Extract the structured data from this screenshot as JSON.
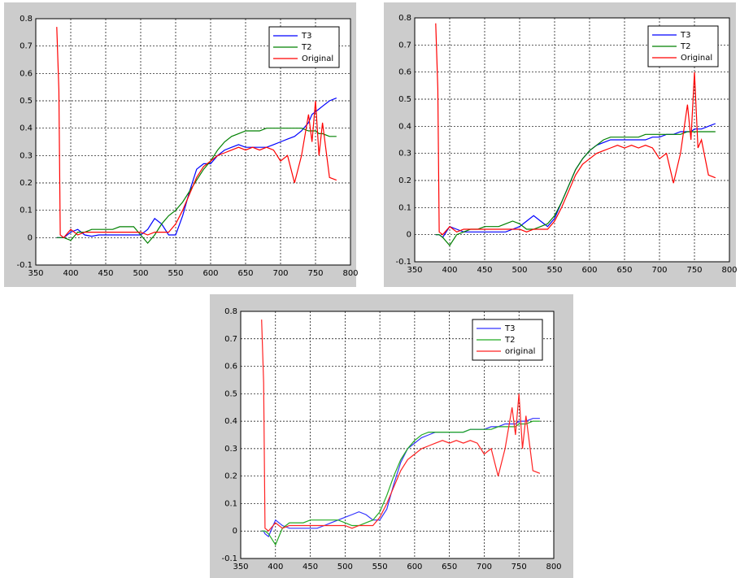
{
  "chart_data": [
    {
      "type": "line",
      "legend": "upper right",
      "grid": true,
      "xlim": [
        350,
        800
      ],
      "xticks": [
        350,
        400,
        450,
        500,
        550,
        600,
        650,
        700,
        750,
        800
      ],
      "ylim": [
        -0.1,
        0.8
      ],
      "yticks": [
        -0.1,
        0,
        0.1,
        0.2,
        0.3,
        0.4,
        0.5,
        0.6,
        0.7,
        0.8
      ],
      "x": [
        380,
        383,
        385,
        390,
        400,
        410,
        420,
        430,
        440,
        450,
        460,
        470,
        480,
        490,
        500,
        510,
        520,
        530,
        540,
        550,
        560,
        570,
        580,
        590,
        600,
        610,
        620,
        630,
        640,
        650,
        660,
        670,
        680,
        690,
        700,
        710,
        720,
        730,
        740,
        745,
        750,
        755,
        760,
        770,
        780
      ],
      "series": [
        {
          "name": "T3",
          "color": "#0000ff",
          "values": [
            0,
            0,
            0,
            0,
            0.02,
            0.03,
            0.01,
            0.005,
            0.01,
            0.01,
            0.01,
            0.01,
            0.01,
            0.01,
            0.01,
            0.03,
            0.07,
            0.05,
            0.01,
            0.01,
            0.08,
            0.17,
            0.25,
            0.27,
            0.27,
            0.3,
            0.32,
            0.33,
            0.34,
            0.33,
            0.33,
            0.33,
            0.33,
            0.34,
            0.35,
            0.36,
            0.37,
            0.39,
            0.42,
            0.45,
            0.46,
            0.47,
            0.48,
            0.5,
            0.51
          ]
        },
        {
          "name": "T2",
          "color": "#008000",
          "values": [
            0,
            0,
            0,
            0,
            -0.01,
            0.02,
            0.02,
            0.03,
            0.03,
            0.03,
            0.03,
            0.04,
            0.04,
            0.04,
            0.01,
            -0.02,
            0.01,
            0.05,
            0.08,
            0.1,
            0.13,
            0.17,
            0.21,
            0.25,
            0.28,
            0.32,
            0.35,
            0.37,
            0.38,
            0.39,
            0.39,
            0.39,
            0.4,
            0.4,
            0.4,
            0.4,
            0.4,
            0.4,
            0.39,
            0.39,
            0.39,
            0.38,
            0.38,
            0.37,
            0.37
          ]
        },
        {
          "name": "Original",
          "color": "#ff0000",
          "values": [
            0.77,
            0.54,
            0.01,
            0,
            0.03,
            0.01,
            0.02,
            0.02,
            0.02,
            0.02,
            0.02,
            0.02,
            0.02,
            0.02,
            0.02,
            0.01,
            0.02,
            0.02,
            0.02,
            0.05,
            0.1,
            0.16,
            0.22,
            0.26,
            0.28,
            0.3,
            0.31,
            0.32,
            0.33,
            0.32,
            0.33,
            0.32,
            0.33,
            0.32,
            0.28,
            0.3,
            0.2,
            0.3,
            0.45,
            0.35,
            0.5,
            0.3,
            0.42,
            0.22,
            0.21
          ]
        }
      ]
    },
    {
      "type": "line",
      "legend": "upper right",
      "grid": true,
      "xlim": [
        350,
        800
      ],
      "xticks": [
        350,
        400,
        450,
        500,
        550,
        600,
        650,
        700,
        750,
        800
      ],
      "ylim": [
        -0.1,
        0.8
      ],
      "yticks": [
        -0.1,
        0,
        0.1,
        0.2,
        0.3,
        0.4,
        0.5,
        0.6,
        0.7,
        0.8
      ],
      "x": [
        380,
        383,
        385,
        390,
        400,
        410,
        420,
        430,
        440,
        450,
        460,
        470,
        480,
        490,
        500,
        510,
        520,
        530,
        540,
        550,
        560,
        570,
        580,
        590,
        600,
        610,
        620,
        630,
        640,
        650,
        660,
        670,
        680,
        690,
        700,
        710,
        720,
        730,
        740,
        745,
        750,
        755,
        760,
        770,
        780
      ],
      "series": [
        {
          "name": "T3",
          "color": "#0000ff",
          "values": [
            0,
            0,
            0,
            -0.01,
            0.03,
            0.02,
            0.01,
            0.01,
            0.01,
            0.01,
            0.01,
            0.01,
            0.01,
            0.02,
            0.03,
            0.05,
            0.07,
            0.05,
            0.03,
            0.06,
            0.12,
            0.18,
            0.24,
            0.28,
            0.31,
            0.33,
            0.34,
            0.35,
            0.35,
            0.35,
            0.35,
            0.35,
            0.35,
            0.36,
            0.36,
            0.37,
            0.37,
            0.38,
            0.38,
            0.38,
            0.39,
            0.39,
            0.39,
            0.4,
            0.41
          ]
        },
        {
          "name": "T2",
          "color": "#008000",
          "values": [
            0,
            0,
            0,
            -0.01,
            -0.04,
            0,
            0.01,
            0.02,
            0.02,
            0.03,
            0.03,
            0.03,
            0.04,
            0.05,
            0.04,
            0.02,
            0.02,
            0.03,
            0.04,
            0.07,
            0.12,
            0.18,
            0.24,
            0.28,
            0.31,
            0.33,
            0.35,
            0.36,
            0.36,
            0.36,
            0.36,
            0.36,
            0.37,
            0.37,
            0.37,
            0.37,
            0.37,
            0.37,
            0.38,
            0.38,
            0.38,
            0.38,
            0.38,
            0.38,
            0.38
          ]
        },
        {
          "name": "Original",
          "color": "#ff0000",
          "values": [
            0.78,
            0.54,
            0.01,
            0,
            0.03,
            0.01,
            0.02,
            0.02,
            0.02,
            0.02,
            0.02,
            0.02,
            0.02,
            0.02,
            0.02,
            0.01,
            0.02,
            0.02,
            0.02,
            0.05,
            0.1,
            0.16,
            0.22,
            0.26,
            0.28,
            0.3,
            0.31,
            0.32,
            0.33,
            0.32,
            0.33,
            0.32,
            0.33,
            0.32,
            0.28,
            0.3,
            0.19,
            0.3,
            0.48,
            0.35,
            0.6,
            0.32,
            0.35,
            0.22,
            0.21
          ]
        }
      ]
    },
    {
      "type": "line",
      "legend": "upper right",
      "grid": true,
      "xlim": [
        350,
        800
      ],
      "xticks": [
        350,
        400,
        450,
        500,
        550,
        600,
        650,
        700,
        750,
        800
      ],
      "ylim": [
        -0.1,
        0.8
      ],
      "yticks": [
        -0.1,
        0,
        0.1,
        0.2,
        0.3,
        0.4,
        0.5,
        0.6,
        0.7,
        0.8
      ],
      "x": [
        380,
        383,
        385,
        390,
        400,
        410,
        420,
        430,
        440,
        450,
        460,
        470,
        480,
        490,
        500,
        510,
        520,
        530,
        540,
        550,
        560,
        570,
        580,
        590,
        600,
        610,
        620,
        630,
        640,
        650,
        660,
        670,
        680,
        690,
        700,
        710,
        720,
        730,
        740,
        745,
        750,
        755,
        760,
        770,
        780
      ],
      "series": [
        {
          "name": "T3",
          "color": "#3333ff",
          "values": [
            0,
            0,
            -0.01,
            -0.02,
            0.04,
            0.02,
            0.01,
            0.01,
            0.01,
            0.01,
            0.01,
            0.02,
            0.03,
            0.04,
            0.05,
            0.06,
            0.07,
            0.06,
            0.04,
            0.04,
            0.08,
            0.17,
            0.25,
            0.3,
            0.32,
            0.34,
            0.35,
            0.36,
            0.36,
            0.36,
            0.36,
            0.36,
            0.37,
            0.37,
            0.37,
            0.38,
            0.38,
            0.39,
            0.39,
            0.39,
            0.4,
            0.4,
            0.4,
            0.41,
            0.41
          ]
        },
        {
          "name": "T2",
          "color": "#22aa22",
          "values": [
            0,
            0,
            0,
            -0.01,
            -0.05,
            0.01,
            0.03,
            0.03,
            0.03,
            0.04,
            0.04,
            0.04,
            0.04,
            0.04,
            0.03,
            0.02,
            0.02,
            0.03,
            0.04,
            0.07,
            0.13,
            0.2,
            0.26,
            0.3,
            0.33,
            0.35,
            0.36,
            0.36,
            0.36,
            0.36,
            0.36,
            0.36,
            0.37,
            0.37,
            0.37,
            0.37,
            0.38,
            0.38,
            0.38,
            0.38,
            0.39,
            0.39,
            0.39,
            0.4,
            0.4
          ]
        },
        {
          "name": "original",
          "color": "#ff2222",
          "values": [
            0.77,
            0.54,
            0.01,
            0,
            0.03,
            0.01,
            0.02,
            0.02,
            0.02,
            0.02,
            0.02,
            0.02,
            0.02,
            0.02,
            0.02,
            0.01,
            0.02,
            0.02,
            0.02,
            0.05,
            0.1,
            0.16,
            0.22,
            0.26,
            0.28,
            0.3,
            0.31,
            0.32,
            0.33,
            0.32,
            0.33,
            0.32,
            0.33,
            0.32,
            0.28,
            0.3,
            0.2,
            0.3,
            0.45,
            0.35,
            0.5,
            0.3,
            0.42,
            0.22,
            0.21
          ]
        }
      ]
    }
  ]
}
